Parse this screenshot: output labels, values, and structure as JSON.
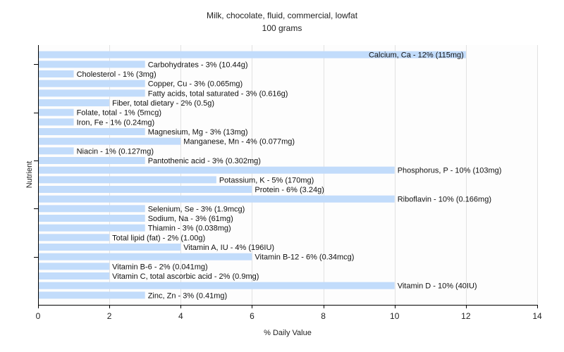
{
  "chart_data": {
    "type": "bar",
    "orientation": "horizontal",
    "title": "Milk, chocolate, fluid, commercial, lowfat",
    "subtitle": "100 grams",
    "xlabel": "% Daily Value",
    "ylabel": "Nutrient",
    "xlim": [
      0,
      14
    ],
    "xticks": [
      0,
      2,
      4,
      6,
      8,
      10,
      12,
      14
    ],
    "grid": true,
    "bar_color": "#c2dcfb",
    "categories": [
      "Calcium, Ca - 12% (115mg)",
      "Carbohydrates - 3% (10.44g)",
      "Cholesterol - 1% (3mg)",
      "Copper, Cu - 3% (0.065mg)",
      "Fatty acids, total saturated - 3% (0.616g)",
      "Fiber, total dietary - 2% (0.5g)",
      "Folate, total - 1% (5mcg)",
      "Iron, Fe - 1% (0.24mg)",
      "Magnesium, Mg - 3% (13mg)",
      "Manganese, Mn - 4% (0.077mg)",
      "Niacin - 1% (0.127mg)",
      "Pantothenic acid - 3% (0.302mg)",
      "Phosphorus, P - 10% (103mg)",
      "Potassium, K - 5% (170mg)",
      "Protein - 6% (3.24g)",
      "Riboflavin - 10% (0.166mg)",
      "Selenium, Se - 3% (1.9mcg)",
      "Sodium, Na - 3% (61mg)",
      "Thiamin - 3% (0.038mg)",
      "Total lipid (fat) - 2% (1.00g)",
      "Vitamin A, IU - 4% (196IU)",
      "Vitamin B-12 - 6% (0.34mcg)",
      "Vitamin B-6 - 2% (0.041mg)",
      "Vitamin C, total ascorbic acid - 2% (0.9mg)",
      "Vitamin D - 10% (40IU)",
      "Zinc, Zn - 3% (0.41mg)"
    ],
    "values": [
      12,
      3,
      1,
      3,
      3,
      2,
      1,
      1,
      3,
      4,
      1,
      3,
      10,
      5,
      6,
      10,
      3,
      3,
      3,
      2,
      4,
      6,
      2,
      2,
      10,
      3
    ]
  }
}
